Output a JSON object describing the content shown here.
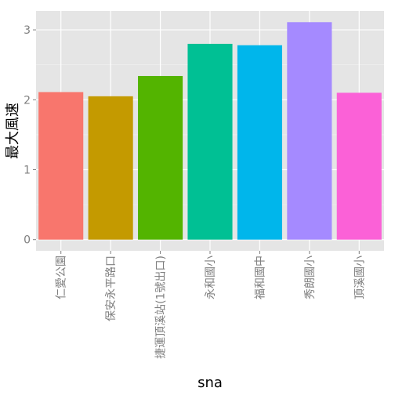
{
  "chart_data": {
    "type": "bar",
    "title": "",
    "xlabel": "sna",
    "ylabel": "最大風速",
    "categories": [
      "仁愛公園",
      "保安永平路口",
      "捷運頂溪站(1號出口)",
      "永和國小",
      "福和國中",
      "秀朗國小",
      "頂溪國小"
    ],
    "values": [
      2.11,
      2.05,
      2.34,
      2.8,
      2.78,
      3.11,
      2.1
    ],
    "colors": [
      "#F8766D",
      "#C49A00",
      "#53B400",
      "#00C094",
      "#00B6EB",
      "#A58AFF",
      "#FB61D7"
    ],
    "ylim": [
      -0.16,
      3.27
    ],
    "yticks": [
      0,
      1,
      2,
      3
    ],
    "grid": true,
    "legend": "none"
  }
}
